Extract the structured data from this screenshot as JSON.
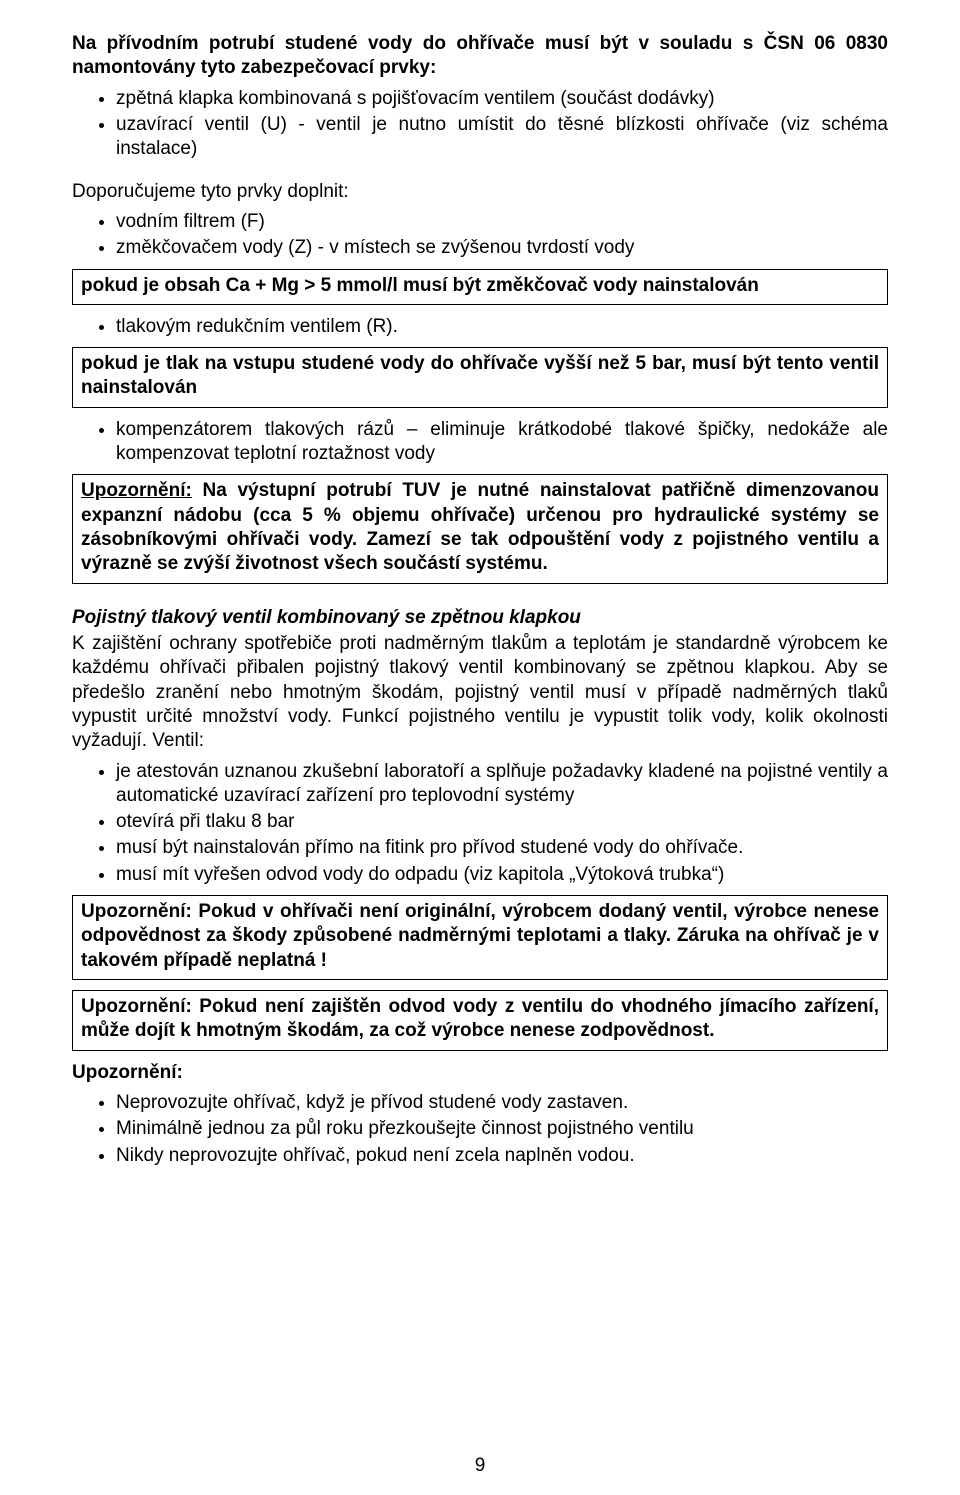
{
  "intro": {
    "p1_bold": "Na přívodním potrubí studené vody do ohřívače musí být v souladu s ČSN 06 0830 namontovány tyto zabezpečovací prvky:",
    "items": [
      "zpětná klapka kombinovaná s pojišťovacím ventilem (součást dodávky)",
      "uzavírací ventil (U) - ventil je nutno umístit do těsné blízkosti ohřívače (viz schéma instalace)"
    ]
  },
  "recommend": {
    "lead": "Doporučujeme tyto prvky doplnit:",
    "items": [
      "vodním filtrem (F)",
      "změkčovačem vody (Z) - v místech se zvýšenou tvrdostí vody"
    ]
  },
  "box1": "pokud je obsah Ca + Mg > 5 mmol/l musí být změkčovač vody nainstalován",
  "after_box1_items": [
    "tlakovým redukčním ventilem (R)."
  ],
  "box2": "pokud je tlak na vstupu studené vody do ohřívače vyšší než 5 bar, musí být tento ventil nainstalován",
  "after_box2_items": [
    "kompenzátorem tlakových rázů – eliminuje krátkodobé tlakové špičky, nedokáže ale kompenzovat teplotní roztažnost vody"
  ],
  "box3": {
    "lead_label": "Upozornění:",
    "text": " Na výstupní potrubí TUV je nutné nainstalovat patřičně dimenzovanou expanzní nádobu (cca 5 % objemu ohřívače) určenou pro hydraulické systémy se zásobníkovými ohřívači vody. Zamezí se tak odpouštění vody z pojistného ventilu a výrazně se zvýší životnost všech součástí systému."
  },
  "valve_section": {
    "title": "Pojistný tlakový ventil kombinovaný se zpětnou klapkou",
    "para": "K zajištění ochrany spotřebiče proti nadměrným tlakům a teplotám je standardně výrobcem ke každému ohřívači přibalen pojistný tlakový ventil kombinovaný se zpětnou klapkou. Aby se předešlo zranění nebo hmotným škodám, pojistný ventil musí v případě nadměrných tlaků vypustit určité množství vody. Funkcí pojistného ventilu je vypustit tolik vody, kolik okolnosti vyžadují. Ventil:",
    "items": [
      "je atestován uznanou zkušební laboratoří a splňuje požadavky kladené na pojistné ventily a automatické uzavírací zařízení pro teplovodní systémy",
      "otevírá při tlaku 8 bar",
      "musí být nainstalován přímo na fitink pro přívod studené vody do ohřívače.",
      "musí mít vyřešen odvod vody do odpadu (viz kapitola „Výtoková trubka“)"
    ]
  },
  "box4": "Upozornění: Pokud v ohřívači není originální, výrobcem dodaný ventil, výrobce nenese odpovědnost za škody způsobené nadměrnými teplotami a tlaky. Záruka na ohřívač je v takovém případě neplatná !",
  "box5": "Upozornění: Pokud není zajištěn odvod vody z ventilu do vhodného jímacího zařízení, může dojít k hmotným škodám, za což výrobce nenese zodpovědnost.",
  "final": {
    "label": "Upozornění:",
    "items": [
      "Neprovozujte ohřívač, když je přívod studené vody zastaven.",
      "Minimálně jednou za půl roku přezkoušejte činnost pojistného ventilu",
      "Nikdy neprovozujte ohřívač, pokud není zcela naplněn vodou."
    ]
  },
  "page_number": "9"
}
